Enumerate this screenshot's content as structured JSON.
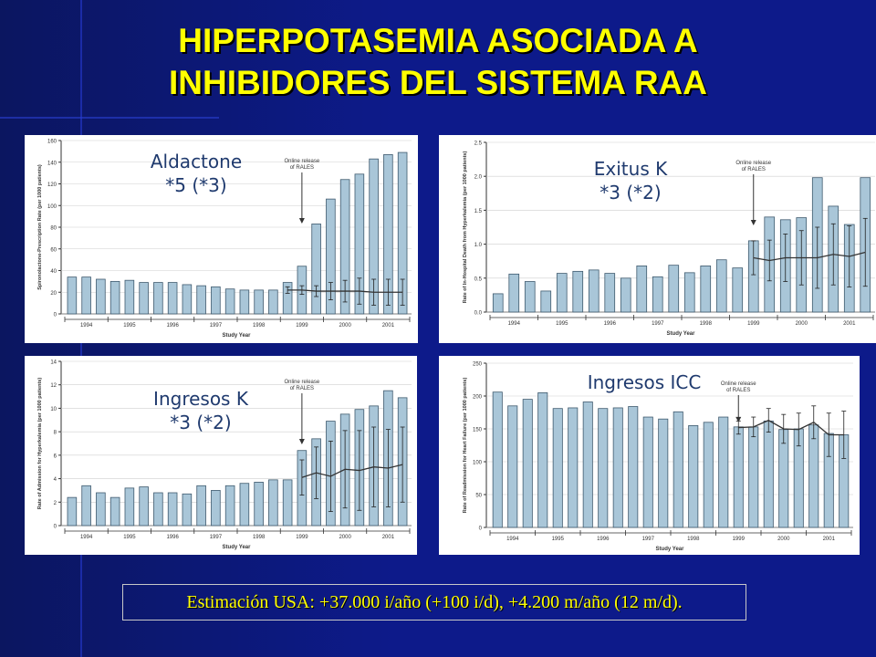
{
  "slide": {
    "title_line1": "HIPERPOTASEMIA ASOCIADA A",
    "title_line2": "INHIBIDORES DEL SISTEMA RAA",
    "footnote": "Estimación USA: +37.000 i/año (+100 i/d), +4.200 m/año (12 m/d).",
    "colors": {
      "background": "#0d1a8a",
      "title": "#ffff00",
      "bar": "#a9c6d8",
      "bar_edge": "#3f5a6e"
    }
  },
  "chart_data": [
    {
      "type": "bar",
      "overlay_line1": "Aldactone",
      "overlay_line2": "*5  (*3)",
      "ylabel": "Spironolactone-Prescription Rate (per 1000 patients)",
      "xlabel": "Study Year",
      "annotation": [
        "Online release",
        "of RALES"
      ],
      "ylim": [
        0,
        160
      ],
      "yticks": [
        0,
        20,
        40,
        60,
        80,
        100,
        120,
        140,
        160
      ],
      "year_labels": [
        "1994",
        "1995",
        "1996",
        "1997",
        "1998",
        "1999",
        "2000",
        "2001"
      ],
      "values": [
        34,
        34,
        32,
        30,
        31,
        29,
        29,
        29,
        27,
        26,
        25,
        23,
        22,
        22,
        22,
        29,
        44,
        83,
        106,
        124,
        129,
        143,
        147,
        149
      ],
      "trend_start": 15,
      "trend": [
        22,
        22,
        21,
        21,
        21,
        21,
        20,
        20,
        20
      ],
      "trend_err": [
        3,
        4,
        5,
        8,
        10,
        12,
        12,
        12,
        12
      ],
      "arrow_index": 16
    },
    {
      "type": "bar",
      "overlay_line1": "Exitus K",
      "overlay_line2": "*3  (*2)",
      "ylabel": "Rate of In-Hospital Death from Hyperkalemia (per 1000 patients)",
      "xlabel": "Study Year",
      "annotation": [
        "Online release",
        "of RALES"
      ],
      "ylim": [
        0,
        2.5
      ],
      "yticks": [
        0.0,
        0.5,
        1.0,
        1.5,
        2.0,
        2.5
      ],
      "year_labels": [
        "1994",
        "1995",
        "1996",
        "1997",
        "1998",
        "1999",
        "2000",
        "2001"
      ],
      "values": [
        0.27,
        0.56,
        0.45,
        0.31,
        0.57,
        0.6,
        0.62,
        0.57,
        0.5,
        0.68,
        0.52,
        0.69,
        0.58,
        0.68,
        0.77,
        0.65,
        1.05,
        1.4,
        1.36,
        1.39,
        1.98,
        1.56,
        1.29,
        1.98
      ],
      "trend_start": 16,
      "trend": [
        0.8,
        0.76,
        0.8,
        0.8,
        0.8,
        0.85,
        0.82,
        0.88
      ],
      "trend_err": [
        0.25,
        0.3,
        0.35,
        0.4,
        0.45,
        0.45,
        0.45,
        0.5
      ],
      "arrow_index": 16
    },
    {
      "type": "bar",
      "overlay_line1": "Ingresos K",
      "overlay_line2": "*3  (*2)",
      "ylabel": "Rate of Admission for Hyperkalemia (per 1000 patients)",
      "xlabel": "Study Year",
      "annotation": [
        "Online release",
        "of RALES"
      ],
      "ylim": [
        0,
        14
      ],
      "yticks": [
        0,
        2,
        4,
        6,
        8,
        10,
        12,
        14
      ],
      "year_labels": [
        "1994",
        "1995",
        "1996",
        "1997",
        "1998",
        "1999",
        "2000",
        "2001"
      ],
      "values": [
        2.4,
        3.4,
        2.8,
        2.4,
        3.2,
        3.3,
        2.8,
        2.8,
        2.7,
        3.4,
        3.0,
        3.4,
        3.6,
        3.7,
        3.9,
        3.9,
        6.4,
        7.4,
        8.9,
        9.5,
        9.9,
        10.2,
        11.5,
        10.9
      ],
      "trend_start": 16,
      "trend": [
        4.1,
        4.5,
        4.2,
        4.8,
        4.7,
        5.0,
        4.9,
        5.2
      ],
      "trend_err": [
        1.5,
        2.2,
        3.0,
        3.3,
        3.4,
        3.4,
        3.3,
        3.2
      ],
      "arrow_index": 16
    },
    {
      "type": "bar",
      "overlay_line1": "Ingresos ICC",
      "overlay_line2": "",
      "ylabel": "Rate of Readmission for Heart Failure (per 1000 patients)",
      "xlabel": "Study Year",
      "annotation": [
        "Online release",
        "of RALES"
      ],
      "ylim": [
        0,
        250
      ],
      "yticks": [
        0,
        50,
        100,
        150,
        200,
        250
      ],
      "year_labels": [
        "1994",
        "1995",
        "1996",
        "1997",
        "1998",
        "1999",
        "2000",
        "2001"
      ],
      "values": [
        206,
        185,
        195,
        205,
        181,
        182,
        191,
        181,
        182,
        184,
        168,
        165,
        176,
        155,
        160,
        168,
        153,
        153,
        162,
        149,
        150,
        156,
        143,
        141
      ],
      "trend_start": 16,
      "trend": [
        152,
        153,
        163,
        150,
        149,
        160,
        141,
        141
      ],
      "trend_err": [
        10,
        15,
        18,
        22,
        25,
        25,
        33,
        36
      ],
      "arrow_index": 16
    }
  ]
}
